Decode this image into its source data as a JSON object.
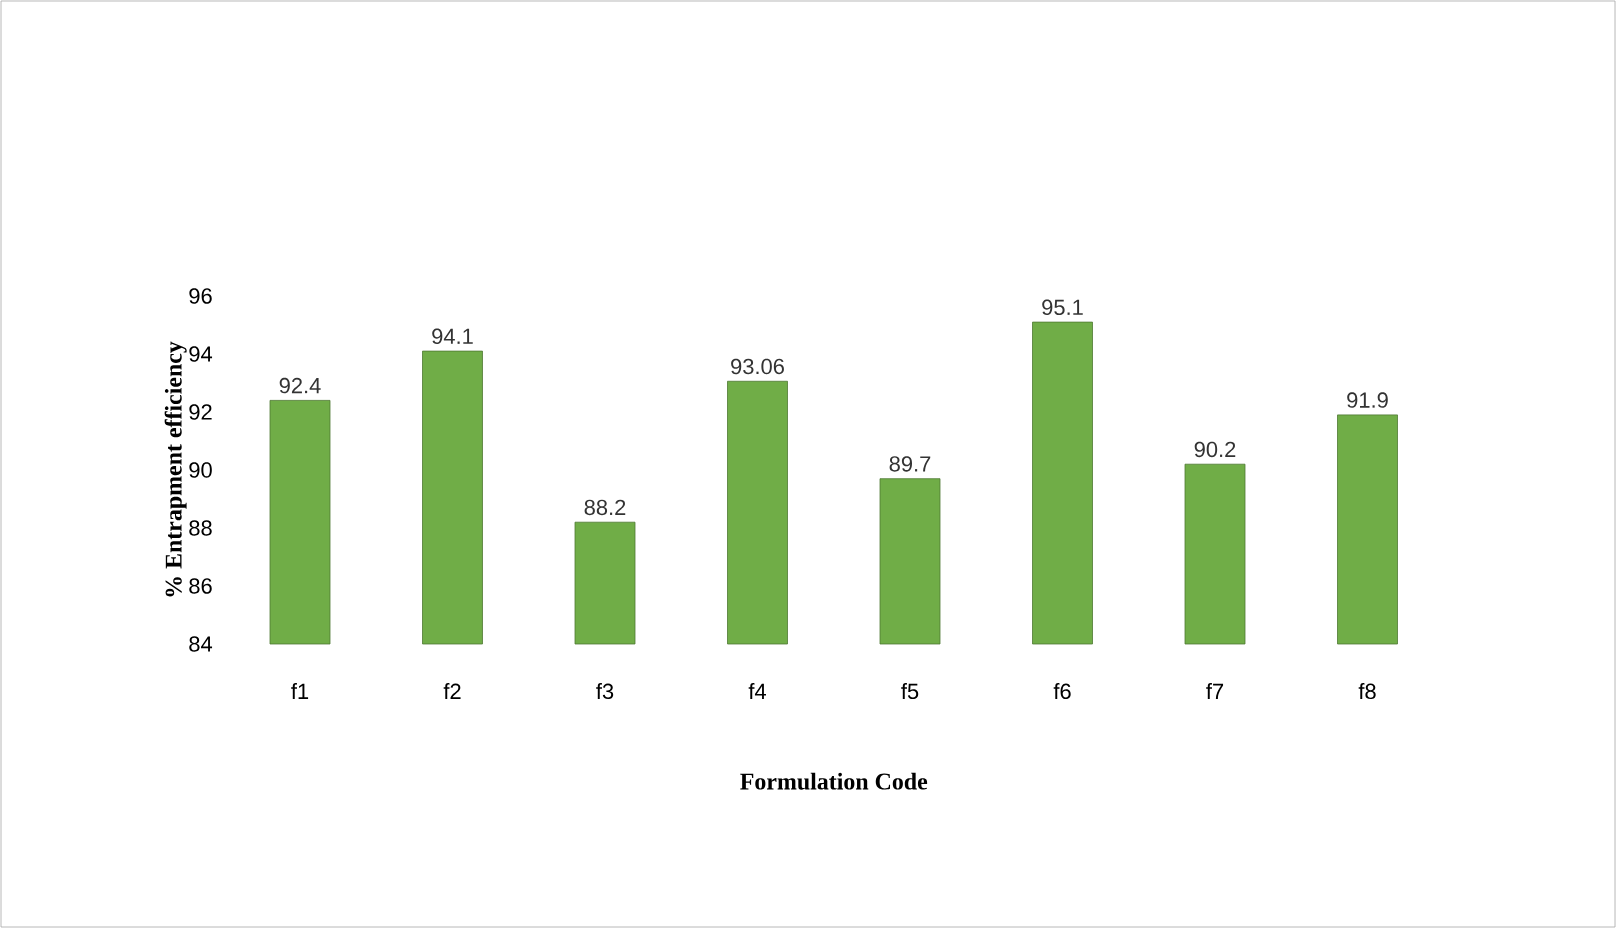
{
  "chart_data": {
    "type": "bar",
    "xlabel": "Formulation  Code",
    "ylabel": "% Entrapment  efficiency",
    "categories": [
      "f1",
      "f2",
      "f3",
      "f4",
      "f5",
      "f6",
      "f7",
      "f8"
    ],
    "values": [
      92.4,
      94.1,
      88.2,
      93.06,
      89.7,
      95.1,
      90.2,
      91.9
    ],
    "color": "#70ad47",
    "ylim": [
      84,
      96
    ],
    "yticks": [
      84,
      86,
      88,
      90,
      92,
      94,
      96
    ],
    "data_labels": true
  }
}
